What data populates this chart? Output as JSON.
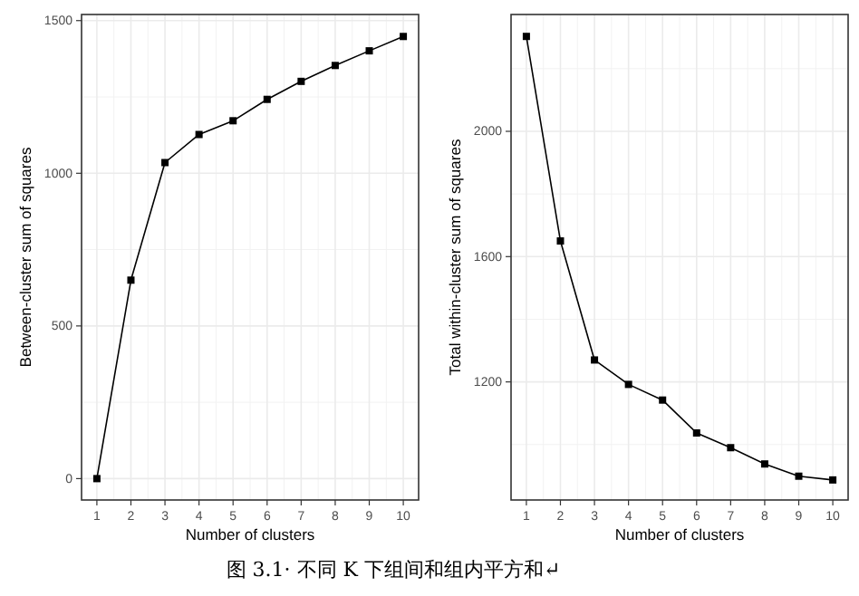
{
  "chart_data": [
    {
      "type": "line",
      "xlabel": "Number of clusters",
      "ylabel": "Between-cluster sum of squares",
      "x": [
        1,
        2,
        3,
        4,
        5,
        6,
        7,
        8,
        9,
        10
      ],
      "xlim": [
        0.55,
        10.45
      ],
      "xticks": [
        1,
        2,
        3,
        4,
        5,
        6,
        7,
        8,
        9,
        10
      ],
      "ylim": [
        -70,
        1520
      ],
      "yticks": [
        0,
        500,
        1000,
        1500
      ],
      "grid": true,
      "marker": "square",
      "line_style": "solid",
      "series": [
        {
          "color": "#000000",
          "values": [
            0,
            650,
            1035,
            1127,
            1172,
            1242,
            1301,
            1353,
            1401,
            1448
          ]
        }
      ],
      "annotations": [
        "图 3.1· 不同 K 下组间和组内平方和↵"
      ]
    },
    {
      "type": "line",
      "xlabel": "Number of clusters",
      "ylabel": "Total within-cluster sum of squares",
      "x": [
        1,
        2,
        3,
        4,
        5,
        6,
        7,
        8,
        9,
        10
      ],
      "xlim": [
        0.55,
        10.45
      ],
      "xticks": [
        1,
        2,
        3,
        4,
        5,
        6,
        7,
        8,
        9,
        10
      ],
      "ylim": [
        823,
        2373
      ],
      "yticks": [
        1200,
        1600,
        2000
      ],
      "grid": true,
      "marker": "square",
      "line_style": "solid",
      "series": [
        {
          "color": "#000000",
          "values": [
            2303,
            1650,
            1270,
            1192,
            1142,
            1037,
            990,
            938,
            899,
            887
          ]
        }
      ]
    }
  ]
}
